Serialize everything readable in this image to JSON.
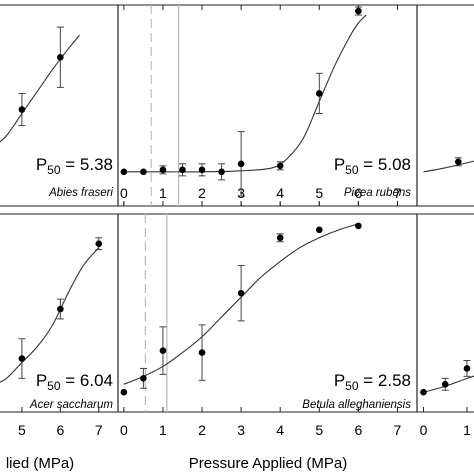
{
  "chart_data": [
    {
      "panel": "top-left",
      "type": "scatter",
      "species": "Abies fraseri",
      "p50_label": "P",
      "p50_sub": "50",
      "p50_value": " = 5.38",
      "p50": 5.38,
      "xlim": [
        4.3,
        7.5
      ],
      "ylim": [
        0,
        100
      ],
      "points": [
        {
          "x": 5,
          "y": 48,
          "err": 8
        },
        {
          "x": 6,
          "y": 74,
          "err": 15
        }
      ],
      "curve_points": [
        [
          4.3,
          30
        ],
        [
          4.6,
          35
        ],
        [
          5,
          46
        ],
        [
          5.4,
          57
        ],
        [
          5.8,
          68
        ],
        [
          6.2,
          78
        ],
        [
          6.5,
          85
        ]
      ],
      "xticks": [],
      "xlabel": ""
    },
    {
      "panel": "top-center",
      "type": "scatter",
      "species": "Picea rubens",
      "p50_label": "P",
      "p50_sub": "50",
      "p50_value": " = 5.08",
      "p50": 5.08,
      "xlim": [
        -0.15,
        7.5
      ],
      "ylim": [
        0,
        100
      ],
      "ref_dashed": 0.7,
      "ref_solid": 1.4,
      "points": [
        {
          "x": 0,
          "y": 17,
          "err": 0
        },
        {
          "x": 0.5,
          "y": 17,
          "err": 0
        },
        {
          "x": 1,
          "y": 18,
          "err": 2
        },
        {
          "x": 1.5,
          "y": 18,
          "err": 3
        },
        {
          "x": 2,
          "y": 18,
          "err": 3
        },
        {
          "x": 2.5,
          "y": 17,
          "err": 4
        },
        {
          "x": 3,
          "y": 21,
          "err": 16
        },
        {
          "x": 4,
          "y": 20,
          "err": 2
        },
        {
          "x": 5,
          "y": 56,
          "err": 10
        },
        {
          "x": 6,
          "y": 97,
          "err": 2
        }
      ],
      "curve_points": [
        [
          0,
          17
        ],
        [
          1,
          17
        ],
        [
          2,
          17
        ],
        [
          3,
          17.5
        ],
        [
          3.8,
          19
        ],
        [
          4.2,
          24
        ],
        [
          4.6,
          34
        ],
        [
          5,
          52
        ],
        [
          5.4,
          70
        ],
        [
          5.8,
          85
        ],
        [
          6,
          91
        ],
        [
          6.2,
          95
        ]
      ],
      "xticks": [
        0,
        1,
        2,
        3,
        4,
        5,
        6,
        7
      ],
      "xlabel": ""
    },
    {
      "panel": "top-right",
      "type": "scatter",
      "species": "",
      "xlim": [
        -0.15,
        1.3
      ],
      "ylim": [
        0,
        100
      ],
      "points": [
        {
          "x": 0.8,
          "y": 22,
          "err": 2
        }
      ],
      "curve_points": [
        [
          0,
          17
        ],
        [
          0.5,
          19
        ],
        [
          1.3,
          23
        ]
      ],
      "xticks": [],
      "xlabel": ""
    },
    {
      "panel": "bottom-left",
      "type": "scatter",
      "species": "Acer saccharum",
      "p50_label": "P",
      "p50_sub": "50",
      "p50_value": " = 6.04",
      "p50": 6.04,
      "xlim": [
        4.3,
        7.5
      ],
      "ylim": [
        0,
        100
      ],
      "points": [
        {
          "x": 5,
          "y": 27,
          "err": 10
        },
        {
          "x": 6,
          "y": 52,
          "err": 5
        },
        {
          "x": 7,
          "y": 85,
          "err": 3
        }
      ],
      "curve_points": [
        [
          4.3,
          14
        ],
        [
          4.6,
          17
        ],
        [
          5,
          25
        ],
        [
          5.4,
          33
        ],
        [
          5.8,
          44
        ],
        [
          6.2,
          60
        ],
        [
          6.6,
          74
        ],
        [
          7,
          83
        ]
      ],
      "xticks": [
        5,
        6,
        7
      ],
      "xlabel": "lied (MPa)"
    },
    {
      "panel": "bottom-center",
      "type": "scatter",
      "species": "Betula alleghaniensis",
      "p50_label": "P",
      "p50_sub": "50",
      "p50_value": " = 2.58",
      "p50": 2.58,
      "xlim": [
        -0.15,
        7.5
      ],
      "ylim": [
        0,
        100
      ],
      "ref_dashed": 0.55,
      "ref_solid": 1.1,
      "points": [
        {
          "x": 0,
          "y": 10,
          "err": 0
        },
        {
          "x": 0.5,
          "y": 17,
          "err": 5
        },
        {
          "x": 1,
          "y": 31,
          "err": 12
        },
        {
          "x": 2,
          "y": 30,
          "err": 14
        },
        {
          "x": 3,
          "y": 60,
          "err": 14
        },
        {
          "x": 4,
          "y": 88,
          "err": 2
        },
        {
          "x": 5,
          "y": 92,
          "err": 0
        },
        {
          "x": 6,
          "y": 94,
          "err": 0
        }
      ],
      "curve_points": [
        [
          0,
          14
        ],
        [
          0.5,
          18
        ],
        [
          1,
          23
        ],
        [
          1.5,
          30
        ],
        [
          2,
          38
        ],
        [
          2.5,
          48
        ],
        [
          3,
          58
        ],
        [
          3.5,
          68
        ],
        [
          4,
          76
        ],
        [
          4.5,
          83
        ],
        [
          5,
          88
        ],
        [
          5.5,
          92
        ],
        [
          6,
          95
        ]
      ],
      "xticks": [
        0,
        1,
        2,
        3,
        4,
        5,
        6,
        7
      ],
      "xlabel": "Pressure Applied (MPa)"
    },
    {
      "panel": "bottom-right",
      "type": "scatter",
      "species": "",
      "xlim": [
        -0.15,
        1.3
      ],
      "ylim": [
        0,
        100
      ],
      "points": [
        {
          "x": 0,
          "y": 10,
          "err": 0
        },
        {
          "x": 0.5,
          "y": 14,
          "err": 3
        },
        {
          "x": 1,
          "y": 22,
          "err": 4
        }
      ],
      "curve_points": [
        [
          0,
          10
        ],
        [
          0.5,
          13
        ],
        [
          1,
          17
        ],
        [
          1.3,
          19
        ]
      ],
      "xticks": [
        0,
        1
      ],
      "xlabel": ""
    }
  ]
}
